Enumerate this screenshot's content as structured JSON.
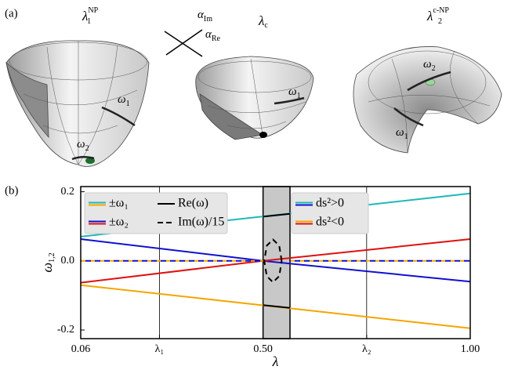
{
  "panel_a": {
    "panel_label": "(a)",
    "surfaces": [
      {
        "symbol": "λ",
        "sub": "1",
        "sup": "NP"
      },
      {
        "symbol": "λ",
        "sub": "c",
        "sup": null
      },
      {
        "symbol": "λ",
        "sub": "2",
        "sup": "c-NP"
      }
    ],
    "axes_labels": [
      {
        "symbol": "α",
        "sub": "Im"
      },
      {
        "symbol": "α",
        "sub": "Re"
      }
    ],
    "mode_labels": [
      {
        "symbol": "ω",
        "sub": "1"
      },
      {
        "symbol": "ω",
        "sub": "2"
      },
      {
        "symbol": "ω",
        "sub": "1"
      },
      {
        "symbol": "ω",
        "sub": "2"
      },
      {
        "symbol": "ω",
        "sub": "1"
      }
    ]
  },
  "chart_data": {
    "type": "line",
    "panel_label": "(b)",
    "x_label": "λ",
    "y_label": {
      "symbol": "ω",
      "sub": "1,2"
    },
    "xlim": [
      0.06,
      1.0
    ],
    "ylim": [
      -0.225,
      0.215
    ],
    "xticks": [
      0.06,
      {
        "value": 0.25,
        "label": "λ₁"
      },
      {
        "value": 0.5,
        "label": "0.50"
      },
      {
        "value": 0.75,
        "label": "λ₂"
      },
      {
        "value": 1.0,
        "label": "1.00"
      }
    ],
    "yticks": [
      {
        "value": -0.2,
        "label": "-0.2"
      },
      {
        "value": 0,
        "label": "0.0"
      },
      0.2
    ],
    "vlines": [
      0.25,
      0.75
    ],
    "shade": [
      0.5,
      0.565
    ],
    "series": [
      {
        "color": "#1fb8b8",
        "dash": false,
        "x": [
          0.06,
          1.0
        ],
        "values": [
          0.07,
          0.195
        ]
      },
      {
        "color": "#f5a500",
        "dash": false,
        "x": [
          0.06,
          1.0
        ],
        "values": [
          -0.07,
          -0.195
        ]
      },
      {
        "color": "#1010d0",
        "dash": false,
        "x": [
          0.06,
          0.5,
          1.0
        ],
        "values": [
          0.063,
          0,
          -0.06
        ]
      },
      {
        "color": "#e01010",
        "dash": false,
        "x": [
          0.06,
          0.5,
          1.0
        ],
        "values": [
          -0.063,
          0,
          0.063
        ]
      },
      {
        "color": "#f5a500",
        "dash": true,
        "x": [
          0.06,
          0.5,
          null,
          0.565,
          1.0
        ],
        "values": [
          0,
          0,
          null,
          0,
          0
        ]
      },
      {
        "color": "#1010d0",
        "dash": true,
        "x": [
          0.06,
          0.5,
          null,
          0.565,
          1.0
        ],
        "values": [
          0,
          0,
          null,
          0,
          0
        ]
      },
      {
        "color": "#000000",
        "dash": false,
        "x": [
          0.5,
          0.565
        ],
        "values": [
          0.128,
          0.136
        ]
      },
      {
        "color": "#000000",
        "dash": false,
        "x": [
          0.5,
          0.565
        ],
        "values": [
          -0.128,
          -0.136
        ]
      },
      {
        "color": "#000000",
        "dash": true,
        "x": [
          0.545,
          0.539,
          0.524,
          0.509,
          0.503,
          0.509,
          0.524,
          0.539,
          0.545
        ],
        "values": [
          0,
          0.044,
          0.062,
          0.044,
          0,
          -0.044,
          -0.062,
          -0.044,
          0
        ]
      }
    ],
    "legends": [
      {
        "entries": [
          {
            "label": "±ω₁",
            "colors": [
              "#1fb8b8",
              "#f5a500"
            ],
            "dash": false
          },
          {
            "label": "Re(ω)",
            "colors": [
              "#000000"
            ],
            "dash": false
          },
          {
            "label": "±ω₂",
            "colors": [
              "#1010d0",
              "#e01010"
            ],
            "dash": false
          },
          {
            "label": "Im(ω)/15",
            "colors": [
              "#000000"
            ],
            "dash": true
          }
        ]
      },
      {
        "entries": [
          {
            "label": "ds²>0",
            "colors": [
              "#1fb8b8",
              "#1010d0"
            ],
            "dash": false
          },
          {
            "label": "ds²<0",
            "colors": [
              "#f5a500",
              "#e01010"
            ],
            "dash": false
          }
        ]
      }
    ]
  }
}
